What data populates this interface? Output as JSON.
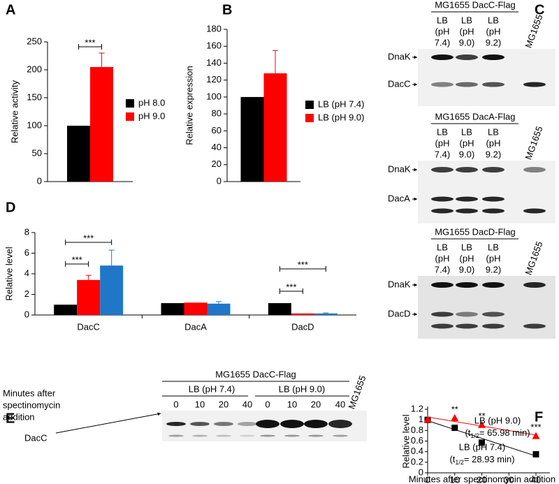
{
  "chart_data": [
    {
      "type": "bar",
      "label": "A",
      "ylabel": "Relative activity",
      "categories": [
        null
      ],
      "series": [
        {
          "name": "pH 8.0",
          "color": "#000000",
          "values": [
            100
          ]
        },
        {
          "name": "pH 9.0",
          "color": "#ff0000",
          "values": [
            205
          ],
          "errors": [
            25
          ]
        }
      ],
      "ylim": [
        0,
        250
      ],
      "yticks": [
        0,
        50,
        100,
        150,
        200,
        250
      ],
      "annotations": [
        "***"
      ]
    },
    {
      "type": "bar",
      "label": "B",
      "ylabel": "Relative expression",
      "categories": [
        null
      ],
      "series": [
        {
          "name": "LB (pH 7.4)",
          "color": "#000000",
          "values": [
            100
          ]
        },
        {
          "name": "LB (pH 9.0)",
          "color": "#ff0000",
          "values": [
            128
          ],
          "errors": [
            27
          ]
        }
      ],
      "ylim": [
        0,
        180
      ],
      "yticks": [
        0,
        20,
        40,
        60,
        80,
        100,
        120,
        140,
        160,
        180
      ]
    },
    {
      "type": "bar",
      "label": "D",
      "ylabel": "Relative level",
      "categories": [
        "DacC",
        "DacA",
        "DacD"
      ],
      "series": [
        {
          "color": "#000000",
          "values": [
            1,
            1.15,
            1.15
          ]
        },
        {
          "color": "#ff0000",
          "values": [
            3.4,
            1.2,
            0.15
          ],
          "errors": [
            0.45,
            0,
            0
          ]
        },
        {
          "color": "#1f77c8",
          "values": [
            4.8,
            1.1,
            0.15
          ],
          "errors": [
            1.5,
            0.2,
            0.05
          ]
        }
      ],
      "ylim": [
        0,
        8
      ],
      "yticks": [
        0,
        2,
        4,
        6,
        8
      ],
      "annotations": [
        "***",
        "***",
        "***",
        "***"
      ]
    },
    {
      "type": "scatter",
      "label": "F",
      "xlabel": "Minutes after spectinomycin addition",
      "ylabel": "Relative level",
      "xlim": [
        0,
        40
      ],
      "xticks": [
        0,
        10,
        20,
        30,
        40
      ],
      "ylim": [
        0,
        1.2
      ],
      "yticks": [
        0,
        0.2,
        0.4,
        0.6,
        0.8,
        1,
        1.2
      ],
      "series": [
        {
          "name": "LB (pH 7.4)",
          "color": "#000000",
          "marker": "square",
          "x": [
            0,
            10,
            20,
            40
          ],
          "values": [
            1,
            0.85,
            0.57,
            0.35
          ],
          "errors": [
            0.02,
            0.02,
            0.02,
            0.05
          ],
          "half_life": {
            "pre": "(t",
            "sub": "1/2",
            "post": "= 28.93 min)"
          }
        },
        {
          "name": "LB (pH 9.0)",
          "color": "#ff0000",
          "marker": "triangle",
          "x": [
            0,
            10,
            20,
            40
          ],
          "values": [
            1,
            1.03,
            0.9,
            0.69
          ],
          "errors": [
            0.02,
            0.02,
            0.02,
            0.02
          ],
          "half_life": {
            "pre": "(t",
            "sub": "1/2",
            "post": "= 65.98 min)"
          },
          "significance": [
            null,
            "**",
            "**",
            "***"
          ]
        }
      ]
    }
  ],
  "blots": {
    "C": {
      "label": "C",
      "blots": [
        {
          "title": "MG1655 DacC-Flag",
          "lanes": [
            [
              "LB",
              "(pH",
              "7.4)"
            ],
            [
              "LB",
              "(pH",
              "9.0)"
            ],
            [
              "LB",
              "(pH",
              "9.2)"
            ]
          ],
          "control": "MG1655",
          "rows": [
            "DnaK",
            "DacC"
          ]
        },
        {
          "title": "MG1655 DacA-Flag",
          "lanes": [
            [
              "LB",
              "(pH",
              "7.4)"
            ],
            [
              "LB",
              "(pH",
              "9.0)"
            ],
            [
              "LB",
              "(pH",
              "9.2)"
            ]
          ],
          "control": "MG1655",
          "rows": [
            "DnaK",
            "DacA"
          ]
        },
        {
          "title": "MG1655 DacD-Flag",
          "lanes": [
            [
              "LB",
              "(pH",
              "7.4)"
            ],
            [
              "LB",
              "(pH",
              "9.0)"
            ],
            [
              "LB",
              "(pH",
              "9.2)"
            ]
          ],
          "control": "MG1655",
          "rows": [
            "DnaK",
            "DacD"
          ]
        }
      ]
    },
    "E": {
      "label": "E",
      "title": "MG1655 DacC-Flag",
      "side_label": [
        "Minutes after",
        "spectinomycin",
        "addition"
      ],
      "groups": [
        {
          "name": "LB (pH 7.4)",
          "times": [
            "0",
            "10",
            "20",
            "40"
          ]
        },
        {
          "name": "LB (pH 9.0)",
          "times": [
            "0",
            "10",
            "20",
            "40"
          ]
        }
      ],
      "control": "MG1655",
      "row": "DacC"
    }
  }
}
